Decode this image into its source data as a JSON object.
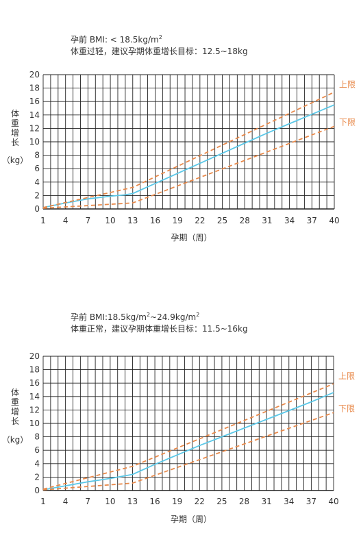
{
  "chart_data": [
    {
      "type": "line",
      "caption": {
        "line1_prefix": "孕前 BMI: < 18.5kg/m",
        "line1_sup": "2",
        "line1_suffix": "",
        "line2": "体重过轻，建议孕期体重增长目标：12.5~18kg"
      },
      "ylabel": "体重增长（kg）",
      "xlabel": "孕期（周）",
      "xlim": [
        1,
        40
      ],
      "ylim": [
        0,
        20
      ],
      "x_ticks": [
        1,
        4,
        7,
        10,
        13,
        16,
        19,
        22,
        25,
        28,
        31,
        34,
        37,
        40
      ],
      "y_ticks": [
        0,
        2,
        4,
        6,
        8,
        10,
        12,
        14,
        16,
        18,
        20
      ],
      "grid": true,
      "series": [
        {
          "name": "",
          "style": "solid",
          "color": "#5bc8e8",
          "points": [
            [
              1,
              0.2
            ],
            [
              4,
              0.9
            ],
            [
              7,
              1.5
            ],
            [
              10,
              1.9
            ],
            [
              12,
              2.1
            ],
            [
              13,
              2.3
            ],
            [
              16,
              3.8
            ],
            [
              19,
              5.3
            ],
            [
              22,
              6.8
            ],
            [
              25,
              8.3
            ],
            [
              28,
              9.8
            ],
            [
              31,
              11.3
            ],
            [
              34,
              12.7
            ],
            [
              37,
              14.1
            ],
            [
              40,
              15.5
            ]
          ]
        },
        {
          "name": "上限",
          "style": "dashed",
          "color": "#e8894a",
          "points": [
            [
              1,
              0.2
            ],
            [
              13,
              3.2
            ],
            [
              40,
              17.4
            ]
          ]
        },
        {
          "name": "下限",
          "style": "dashed",
          "color": "#e8894a",
          "points": [
            [
              1,
              0.1
            ],
            [
              13,
              0.9
            ],
            [
              40,
              12.3
            ]
          ]
        }
      ]
    },
    {
      "type": "line",
      "caption": {
        "line1_prefix": "孕前 BMI:18.5kg/m",
        "line1_sup": "2",
        "line1_suffix": "~24.9kg/m",
        "line1_sup2": "2",
        "line2": "体重正常，建议孕期体重增长目标：11.5~16kg"
      },
      "ylabel": "体重增长（kg）",
      "xlabel": "孕期（周）",
      "xlim": [
        1,
        40
      ],
      "ylim": [
        0,
        20
      ],
      "x_ticks": [
        1,
        4,
        7,
        10,
        13,
        16,
        19,
        22,
        25,
        28,
        31,
        34,
        37,
        40
      ],
      "y_ticks": [
        0,
        2,
        4,
        6,
        8,
        10,
        12,
        14,
        16,
        18,
        20
      ],
      "grid": true,
      "series": [
        {
          "name": "",
          "style": "solid",
          "color": "#5bc8e8",
          "points": [
            [
              1,
              0.1
            ],
            [
              4,
              0.7
            ],
            [
              7,
              1.3
            ],
            [
              10,
              1.8
            ],
            [
              13,
              2.4
            ],
            [
              16,
              3.9
            ],
            [
              19,
              5.3
            ],
            [
              22,
              6.7
            ],
            [
              25,
              8.0
            ],
            [
              28,
              9.3
            ],
            [
              31,
              10.6
            ],
            [
              34,
              11.9
            ],
            [
              37,
              13.2
            ],
            [
              40,
              14.6
            ]
          ]
        },
        {
          "name": "上限",
          "style": "dashed",
          "color": "#e8894a",
          "points": [
            [
              1,
              0.2
            ],
            [
              13,
              3.6
            ],
            [
              40,
              15.9
            ]
          ]
        },
        {
          "name": "下限",
          "style": "dashed",
          "color": "#e8894a",
          "points": [
            [
              1,
              0.1
            ],
            [
              13,
              1.1
            ],
            [
              40,
              11.6
            ]
          ]
        }
      ]
    }
  ],
  "style": {
    "grid_color": "#222222",
    "axis_text_color": "#333333",
    "limit_label_color": "#e8894a"
  }
}
